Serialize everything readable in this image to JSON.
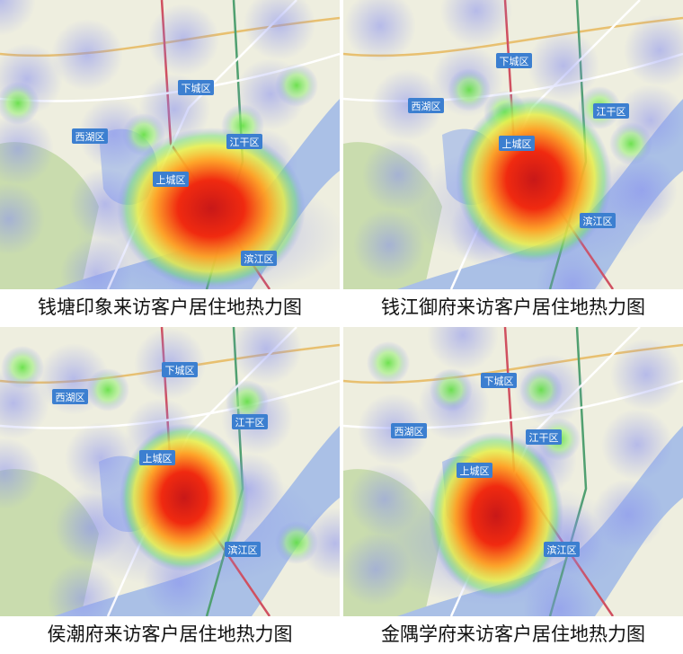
{
  "panels": [
    {
      "caption": "钱塘印象来访客户居住地热力图",
      "labels": [
        "下城区",
        "西湖区",
        "江干区",
        "上城区",
        "滨江区"
      ]
    },
    {
      "caption": "钱江御府来访客户居住地热力图",
      "labels": [
        "下城区",
        "西湖区",
        "江干区",
        "上城区",
        "滨江区"
      ]
    },
    {
      "caption": "侯潮府来访客户居住地热力图",
      "labels": [
        "下城区",
        "西湖区",
        "江干区",
        "上城区",
        "滨江区"
      ]
    },
    {
      "caption": "金隅学府来访客户居住地热力图",
      "labels": [
        "下城区",
        "西湖区",
        "江干区",
        "上城区",
        "滨江区"
      ]
    }
  ]
}
